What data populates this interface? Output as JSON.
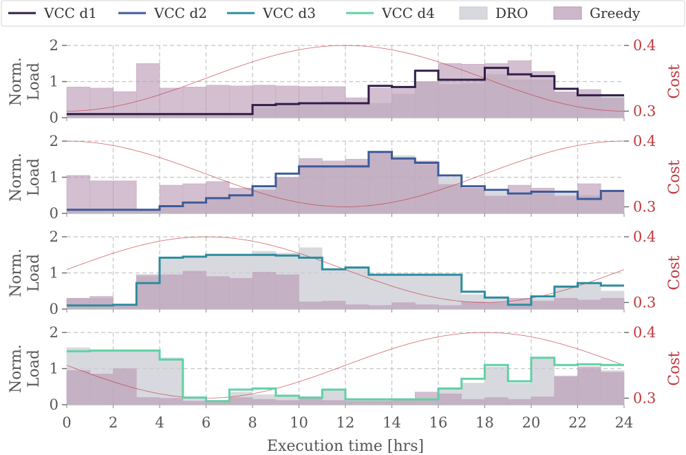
{
  "chart_data": {
    "type": "step",
    "xlabel": "Execution time [hrs]",
    "x_ticks": [
      0,
      2,
      4,
      6,
      8,
      10,
      12,
      14,
      16,
      18,
      20,
      22,
      24
    ],
    "xlim": [
      0,
      24
    ],
    "ylabel": "Norm.\nLoad",
    "ylabel_lines": [
      "Norm.",
      "Load"
    ],
    "ylim": [
      0,
      2
    ],
    "y_ticks": [
      0,
      1,
      2
    ],
    "ylabel2": "Cost",
    "y2lim": [
      0.29,
      0.4
    ],
    "y2_ticks": [
      0.3,
      0.4
    ],
    "y2_tick_labels": [
      "0.3",
      "0.4"
    ],
    "colors": {
      "d1": "#2e1e47",
      "d2": "#3d5a98",
      "d3": "#2b8c9e",
      "d4": "#5fd1a4",
      "dro": "#c9ccd3",
      "greedy": "#b898b3",
      "cost": "#c0393f"
    },
    "legend": [
      {
        "label": "VCC d1",
        "kind": "line",
        "color": "#2e1e47"
      },
      {
        "label": "VCC d2",
        "kind": "line",
        "color": "#3d5a98"
      },
      {
        "label": "VCC d3",
        "kind": "line",
        "color": "#2b8c9e"
      },
      {
        "label": "VCC d4",
        "kind": "line",
        "color": "#5fd1a4"
      },
      {
        "label": "DRO",
        "kind": "patch",
        "color": "#c9ccd3"
      },
      {
        "label": "Greedy",
        "kind": "patch",
        "color": "#b898b3"
      }
    ],
    "panels": [
      {
        "name": "VCC d1",
        "color": "#2e1e47",
        "vcc": [
          0.1,
          0.1,
          0.1,
          0.1,
          0.1,
          0.1,
          0.1,
          0.1,
          0.35,
          0.38,
          0.4,
          0.4,
          0.4,
          0.88,
          0.85,
          1.3,
          1.05,
          1.05,
          1.38,
          1.2,
          1.15,
          0.8,
          0.62,
          0.62
        ],
        "dro": [
          0.1,
          0.1,
          0.1,
          0.1,
          0.1,
          0.1,
          0.1,
          0.1,
          0.28,
          0.38,
          0.4,
          0.45,
          0.4,
          0.4,
          0.65,
          1.0,
          0.92,
          0.95,
          1.2,
          1.05,
          1.05,
          0.7,
          0.62,
          0.62
        ],
        "greedy": [
          0.85,
          0.82,
          0.72,
          1.5,
          0.82,
          0.85,
          0.9,
          0.88,
          0.9,
          0.88,
          0.86,
          0.86,
          0.55,
          0.82,
          0.85,
          1.0,
          1.5,
          1.48,
          1.5,
          1.58,
          1.28,
          0.72,
          0.78,
          0.55
        ],
        "cost": {
          "mean": 0.35,
          "amp": 0.05,
          "phase": 12
        }
      },
      {
        "name": "VCC d2",
        "color": "#3d5a98",
        "vcc": [
          0.1,
          0.1,
          0.1,
          0.1,
          0.2,
          0.3,
          0.42,
          0.5,
          0.75,
          1.1,
          1.3,
          1.3,
          1.3,
          1.7,
          1.52,
          1.4,
          1.05,
          0.75,
          0.65,
          0.55,
          0.6,
          0.6,
          0.4,
          0.62
        ],
        "dro": [
          0.1,
          0.1,
          0.1,
          0.1,
          0.2,
          0.3,
          0.4,
          0.5,
          0.7,
          1.0,
          1.3,
          1.3,
          1.35,
          1.7,
          1.6,
          1.35,
          1.0,
          0.7,
          0.6,
          0.5,
          0.62,
          0.6,
          0.5,
          0.62
        ],
        "greedy": [
          1.05,
          0.9,
          0.9,
          0.12,
          0.78,
          0.82,
          0.88,
          0.7,
          0.65,
          1.0,
          1.52,
          1.45,
          1.5,
          1.72,
          1.52,
          1.45,
          0.8,
          0.7,
          0.48,
          0.78,
          0.7,
          0.48,
          0.82,
          0.6
        ],
        "cost": {
          "mean": 0.35,
          "amp": 0.05,
          "phase": 0
        }
      },
      {
        "name": "VCC d3",
        "color": "#2b8c9e",
        "vcc": [
          0.1,
          0.1,
          0.12,
          0.72,
          1.42,
          1.45,
          1.5,
          1.5,
          1.5,
          1.48,
          1.42,
          1.1,
          1.15,
          0.95,
          0.95,
          0.95,
          0.95,
          0.48,
          0.32,
          0.12,
          0.35,
          0.62,
          0.72,
          0.65
        ],
        "dro": [
          0.3,
          0.3,
          0.1,
          0.9,
          1.4,
          1.45,
          1.5,
          1.5,
          1.6,
          1.55,
          1.7,
          1.1,
          1.15,
          0.95,
          0.95,
          0.95,
          0.95,
          0.4,
          0.32,
          0.12,
          0.3,
          0.6,
          0.7,
          0.5
        ],
        "greedy": [
          0.3,
          0.35,
          0.12,
          0.95,
          0.95,
          1.05,
          0.9,
          0.85,
          1.02,
          0.95,
          0.2,
          0.22,
          0.12,
          0.1,
          0.18,
          0.12,
          0.1,
          0.2,
          0.18,
          0.3,
          0.22,
          0.3,
          0.25,
          0.3
        ],
        "cost": {
          "mean": 0.35,
          "amp": 0.05,
          "phase": 6
        }
      },
      {
        "name": "VCC d4",
        "color": "#5fd1a4",
        "vcc": [
          1.48,
          1.5,
          1.5,
          1.5,
          1.25,
          0.2,
          0.1,
          0.42,
          0.45,
          0.25,
          0.2,
          0.42,
          0.15,
          0.15,
          0.15,
          0.15,
          0.45,
          0.72,
          1.1,
          0.65,
          1.3,
          1.1,
          1.12,
          1.1
        ],
        "dro": [
          1.58,
          1.5,
          1.5,
          1.5,
          1.3,
          0.2,
          0.1,
          0.35,
          0.28,
          0.25,
          0.2,
          0.42,
          0.15,
          0.15,
          0.15,
          0.15,
          0.45,
          0.6,
          1.05,
          0.6,
          1.3,
          0.8,
          1.0,
          0.95
        ],
        "greedy": [
          0.95,
          0.85,
          1.0,
          0.2,
          0.18,
          0.1,
          0.12,
          0.2,
          0.15,
          0.12,
          0.18,
          0.12,
          0.1,
          0.1,
          0.12,
          0.35,
          0.3,
          0.15,
          0.2,
          0.15,
          0.22,
          0.78,
          1.05,
          0.9
        ],
        "cost": {
          "mean": 0.35,
          "amp": 0.05,
          "phase": -6
        }
      }
    ]
  }
}
